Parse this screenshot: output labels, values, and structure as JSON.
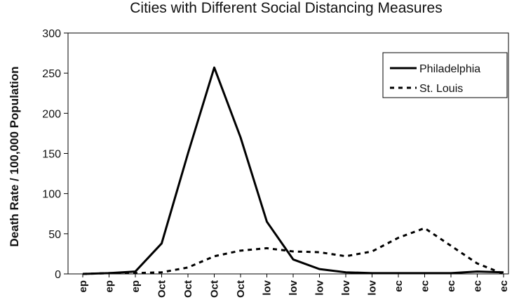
{
  "chart_data": {
    "type": "line",
    "title": "Cities with Different Social Distancing Measures",
    "ylabel": "Death Rate / 100,000 Population",
    "xlabel": "",
    "ylim": [
      0,
      300
    ],
    "yticks": [
      "0",
      "50",
      "100",
      "150",
      "200",
      "250",
      "300"
    ],
    "categories": [
      "ep",
      "ep",
      "ep",
      "Oct",
      "Oct",
      "Oct",
      "Oct",
      "lov",
      "lov",
      "lov",
      "lov",
      "lov",
      "ec",
      "ec",
      "ec",
      "ec",
      "ec"
    ],
    "series": [
      {
        "name": "Philadelphia",
        "style": "solid",
        "values": [
          0,
          1,
          3,
          38,
          150,
          257,
          170,
          65,
          18,
          6,
          2,
          1,
          1,
          1,
          1,
          3,
          2
        ]
      },
      {
        "name": "St. Louis",
        "style": "dotted",
        "values": [
          0,
          1,
          1,
          2,
          8,
          22,
          29,
          32,
          28,
          27,
          22,
          28,
          45,
          57,
          35,
          13,
          0
        ]
      }
    ],
    "grid": false,
    "legend": "top-right",
    "colors": {
      "line": "#000000",
      "axis": "#000000",
      "background": "#ffffff"
    }
  }
}
